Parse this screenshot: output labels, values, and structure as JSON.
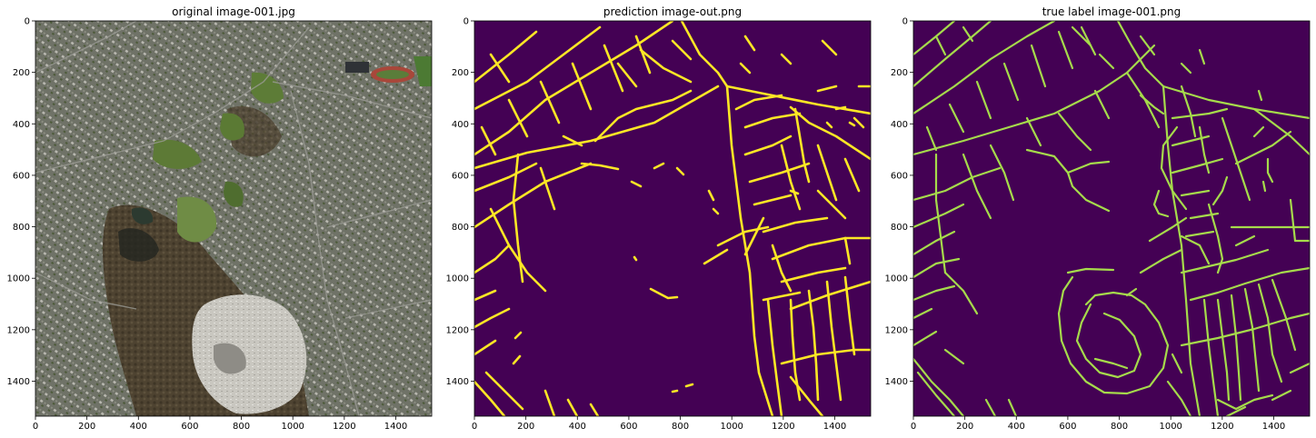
{
  "figure": {
    "panels": [
      {
        "title": "original image-001.jpg",
        "kind": "satellite-photo",
        "colors": {
          "vegetation": "#5b6a3a",
          "urban": "#7d7c74",
          "forest": "#4a3f2c",
          "quarry": "#c8c6bf"
        }
      },
      {
        "title": "prediction image-out.png",
        "kind": "road-mask",
        "colors": {
          "background": "#440154",
          "road": "#fde725"
        }
      },
      {
        "title": "true label image-001.png",
        "kind": "road-mask",
        "colors": {
          "background": "#440154",
          "road": "#a6db4b"
        }
      }
    ],
    "axis": {
      "x_ticks": [
        "0",
        "200",
        "400",
        "600",
        "800",
        "1000",
        "1200",
        "1400"
      ],
      "y_ticks": [
        "0",
        "200",
        "400",
        "600",
        "800",
        "1000",
        "1200",
        "1400"
      ]
    }
  }
}
